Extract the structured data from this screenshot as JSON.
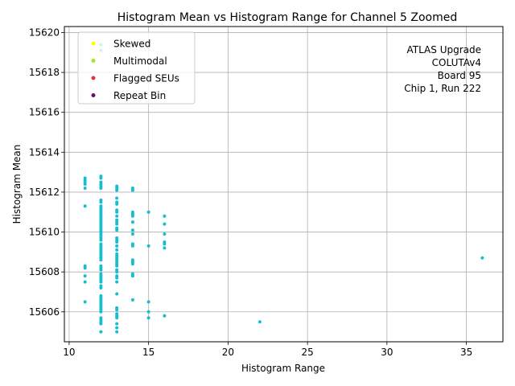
{
  "chart_data": {
    "type": "scatter",
    "title": "Histogram Mean vs Histogram Range for Channel 5 Zoomed",
    "xlabel": "Histogram Range",
    "ylabel": "Histogram Mean",
    "xlim": [
      9.7,
      37.3
    ],
    "ylim": [
      15604.5,
      15620.3
    ],
    "xticks": [
      10,
      15,
      20,
      25,
      30,
      35
    ],
    "yticks": [
      15606,
      15608,
      15610,
      15612,
      15614,
      15616,
      15618,
      15620
    ],
    "grid": true,
    "legend_position": "upper-left",
    "annotation": [
      "ATLAS Upgrade",
      "COLUTAv4",
      "Board 95",
      "Chip 1, Run 222"
    ],
    "series": [
      {
        "name": "Skewed",
        "color": "#ffff00",
        "points": []
      },
      {
        "name": "Multimodal",
        "color": "#a6e22e",
        "points": []
      },
      {
        "name": "Flagged SEUs",
        "color": "#e8303a",
        "points": []
      },
      {
        "name": "Repeat Bin",
        "color": "#6a0d70",
        "points": []
      },
      {
        "name": "",
        "color": "#17becf",
        "points": [
          [
            11,
            15612.7
          ],
          [
            11,
            15612.6
          ],
          [
            11,
            15612.5
          ],
          [
            11,
            15612.4
          ],
          [
            11,
            15612.2
          ],
          [
            11,
            15611.3
          ],
          [
            11,
            15608.3
          ],
          [
            11,
            15608.2
          ],
          [
            11,
            15607.8
          ],
          [
            11,
            15607.5
          ],
          [
            11,
            15606.5
          ],
          [
            12,
            15619.4
          ],
          [
            12,
            15619.1
          ],
          [
            12,
            15612.8
          ],
          [
            12,
            15612.7
          ],
          [
            12,
            15612.5
          ],
          [
            12,
            15612.4
          ],
          [
            12,
            15612.3
          ],
          [
            12,
            15612.2
          ],
          [
            12,
            15611.6
          ],
          [
            12,
            15611.5
          ],
          [
            12,
            15611.3
          ],
          [
            12,
            15611.2
          ],
          [
            12,
            15611.1
          ],
          [
            12,
            15611.0
          ],
          [
            12,
            15610.9
          ],
          [
            12,
            15610.8
          ],
          [
            12,
            15610.7
          ],
          [
            12,
            15610.6
          ],
          [
            12,
            15610.5
          ],
          [
            12,
            15610.4
          ],
          [
            12,
            15610.3
          ],
          [
            12,
            15610.2
          ],
          [
            12,
            15610.1
          ],
          [
            12,
            15610.0
          ],
          [
            12,
            15609.9
          ],
          [
            12,
            15609.8
          ],
          [
            12,
            15609.7
          ],
          [
            12,
            15609.6
          ],
          [
            12,
            15609.4
          ],
          [
            12,
            15609.3
          ],
          [
            12,
            15609.2
          ],
          [
            12,
            15609.1
          ],
          [
            12,
            15609.0
          ],
          [
            12,
            15608.9
          ],
          [
            12,
            15608.8
          ],
          [
            12,
            15608.7
          ],
          [
            12,
            15608.6
          ],
          [
            12,
            15608.3
          ],
          [
            12,
            15608.2
          ],
          [
            12,
            15608.1
          ],
          [
            12,
            15607.9
          ],
          [
            12,
            15607.8
          ],
          [
            12,
            15607.7
          ],
          [
            12,
            15607.6
          ],
          [
            12,
            15607.5
          ],
          [
            12,
            15607.3
          ],
          [
            12,
            15607.2
          ],
          [
            12,
            15606.8
          ],
          [
            12,
            15606.7
          ],
          [
            12,
            15606.6
          ],
          [
            12,
            15606.5
          ],
          [
            12,
            15606.4
          ],
          [
            12,
            15606.3
          ],
          [
            12,
            15606.2
          ],
          [
            12,
            15606.1
          ],
          [
            12,
            15606.0
          ],
          [
            12,
            15605.7
          ],
          [
            12,
            15605.6
          ],
          [
            12,
            15605.5
          ],
          [
            12,
            15605.4
          ],
          [
            12,
            15605.0
          ],
          [
            13,
            15612.3
          ],
          [
            13,
            15612.2
          ],
          [
            13,
            15612.1
          ],
          [
            13,
            15611.7
          ],
          [
            13,
            15611.5
          ],
          [
            13,
            15611.4
          ],
          [
            13,
            15611.1
          ],
          [
            13,
            15611.0
          ],
          [
            13,
            15610.8
          ],
          [
            13,
            15610.6
          ],
          [
            13,
            15610.5
          ],
          [
            13,
            15610.4
          ],
          [
            13,
            15610.2
          ],
          [
            13,
            15610.1
          ],
          [
            13,
            15609.7
          ],
          [
            13,
            15609.6
          ],
          [
            13,
            15609.5
          ],
          [
            13,
            15609.3
          ],
          [
            13,
            15609.1
          ],
          [
            13,
            15608.9
          ],
          [
            13,
            15608.8
          ],
          [
            13,
            15608.7
          ],
          [
            13,
            15608.6
          ],
          [
            13,
            15608.5
          ],
          [
            13,
            15608.4
          ],
          [
            13,
            15608.3
          ],
          [
            13,
            15608.1
          ],
          [
            13,
            15608.0
          ],
          [
            13,
            15607.8
          ],
          [
            13,
            15607.7
          ],
          [
            13,
            15607.5
          ],
          [
            13,
            15606.9
          ],
          [
            13,
            15606.2
          ],
          [
            13,
            15606.1
          ],
          [
            13,
            15605.9
          ],
          [
            13,
            15605.8
          ],
          [
            13,
            15605.7
          ],
          [
            13,
            15605.4
          ],
          [
            13,
            15605.2
          ],
          [
            13,
            15605.0
          ],
          [
            14,
            15612.2
          ],
          [
            14,
            15612.1
          ],
          [
            14,
            15611.0
          ],
          [
            14,
            15610.9
          ],
          [
            14,
            15610.8
          ],
          [
            14,
            15610.5
          ],
          [
            14,
            15610.1
          ],
          [
            14,
            15609.9
          ],
          [
            14,
            15609.4
          ],
          [
            14,
            15609.3
          ],
          [
            14,
            15608.6
          ],
          [
            14,
            15608.5
          ],
          [
            14,
            15608.4
          ],
          [
            14,
            15607.9
          ],
          [
            14,
            15607.8
          ],
          [
            14,
            15606.6
          ],
          [
            15,
            15611.0
          ],
          [
            15,
            15609.3
          ],
          [
            15,
            15606.5
          ],
          [
            15,
            15606.0
          ],
          [
            15,
            15605.7
          ],
          [
            16,
            15610.8
          ],
          [
            16,
            15610.4
          ],
          [
            16,
            15609.9
          ],
          [
            16,
            15609.5
          ],
          [
            16,
            15609.4
          ],
          [
            16,
            15609.2
          ],
          [
            16,
            15605.8
          ],
          [
            22,
            15605.5
          ],
          [
            36,
            15608.7
          ]
        ]
      }
    ]
  }
}
